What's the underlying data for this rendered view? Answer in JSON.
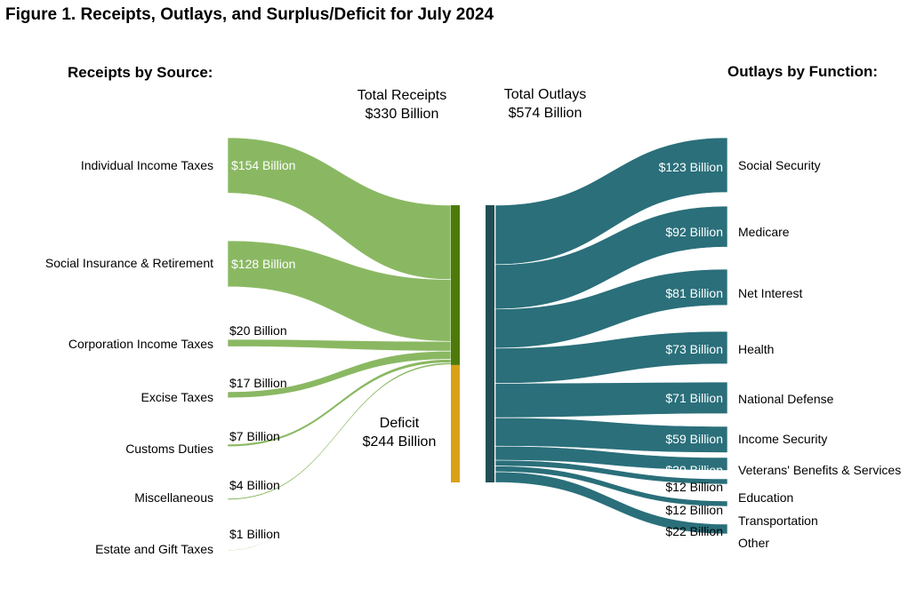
{
  "chart_data": {
    "type": "sankey",
    "title": "Figure 1. Receipts, Outlays, and Surplus/Deficit for July 2024",
    "units": "Billion USD",
    "receipts_heading": "Receipts by Source:",
    "outlays_heading": "Outlays by Function:",
    "total_receipts": {
      "label": "Total Receipts",
      "value_label": "$330 Billion",
      "value": 330
    },
    "total_outlays": {
      "label": "Total Outlays",
      "value_label": "$574 Billion",
      "value": 574
    },
    "deficit": {
      "label": "Deficit",
      "value_label": "$244 Billion",
      "value": 244
    },
    "receipts": [
      {
        "name": "Individual Income Taxes",
        "value": 154,
        "value_label": "$154 Billion"
      },
      {
        "name": "Social Insurance & Retirement",
        "value": 128,
        "value_label": "$128 Billion"
      },
      {
        "name": "Corporation Income Taxes",
        "value": 20,
        "value_label": "$20 Billion"
      },
      {
        "name": "Excise Taxes",
        "value": 17,
        "value_label": "$17 Billion"
      },
      {
        "name": "Customs Duties",
        "value": 7,
        "value_label": "$7 Billion"
      },
      {
        "name": "Miscellaneous",
        "value": 4,
        "value_label": "$4 Billion"
      },
      {
        "name": "Estate and Gift Taxes",
        "value": 1,
        "value_label": "$1 Billion"
      }
    ],
    "outlays": [
      {
        "name": "Social Security",
        "value": 123,
        "value_label": "$123 Billion"
      },
      {
        "name": "Medicare",
        "value": 92,
        "value_label": "$92 Billion"
      },
      {
        "name": "Net Interest",
        "value": 81,
        "value_label": "$81 Billion"
      },
      {
        "name": "Health",
        "value": 73,
        "value_label": "$73 Billion"
      },
      {
        "name": "National Defense",
        "value": 71,
        "value_label": "$71 Billion"
      },
      {
        "name": "Income Security",
        "value": 59,
        "value_label": "$59 Billion"
      },
      {
        "name": "Veterans' Benefits & Services",
        "value": 29,
        "value_label": "$29 Billion"
      },
      {
        "name": "Education",
        "value": 12,
        "value_label": "$12 Billion"
      },
      {
        "name": "Transportation",
        "value": 12,
        "value_label": "$12 Billion"
      },
      {
        "name": "Other",
        "value": 22,
        "value_label": "$22 Billion"
      }
    ],
    "colors": {
      "receipt_flow": "#8ab862",
      "receipt_bar": "#4e7a0c",
      "deficit_bar": "#dba115",
      "outlay_flow": "#2a6f7a",
      "outlay_bar": "#1f4f55",
      "text": "#000000",
      "inner_text": "#ffffff"
    }
  }
}
